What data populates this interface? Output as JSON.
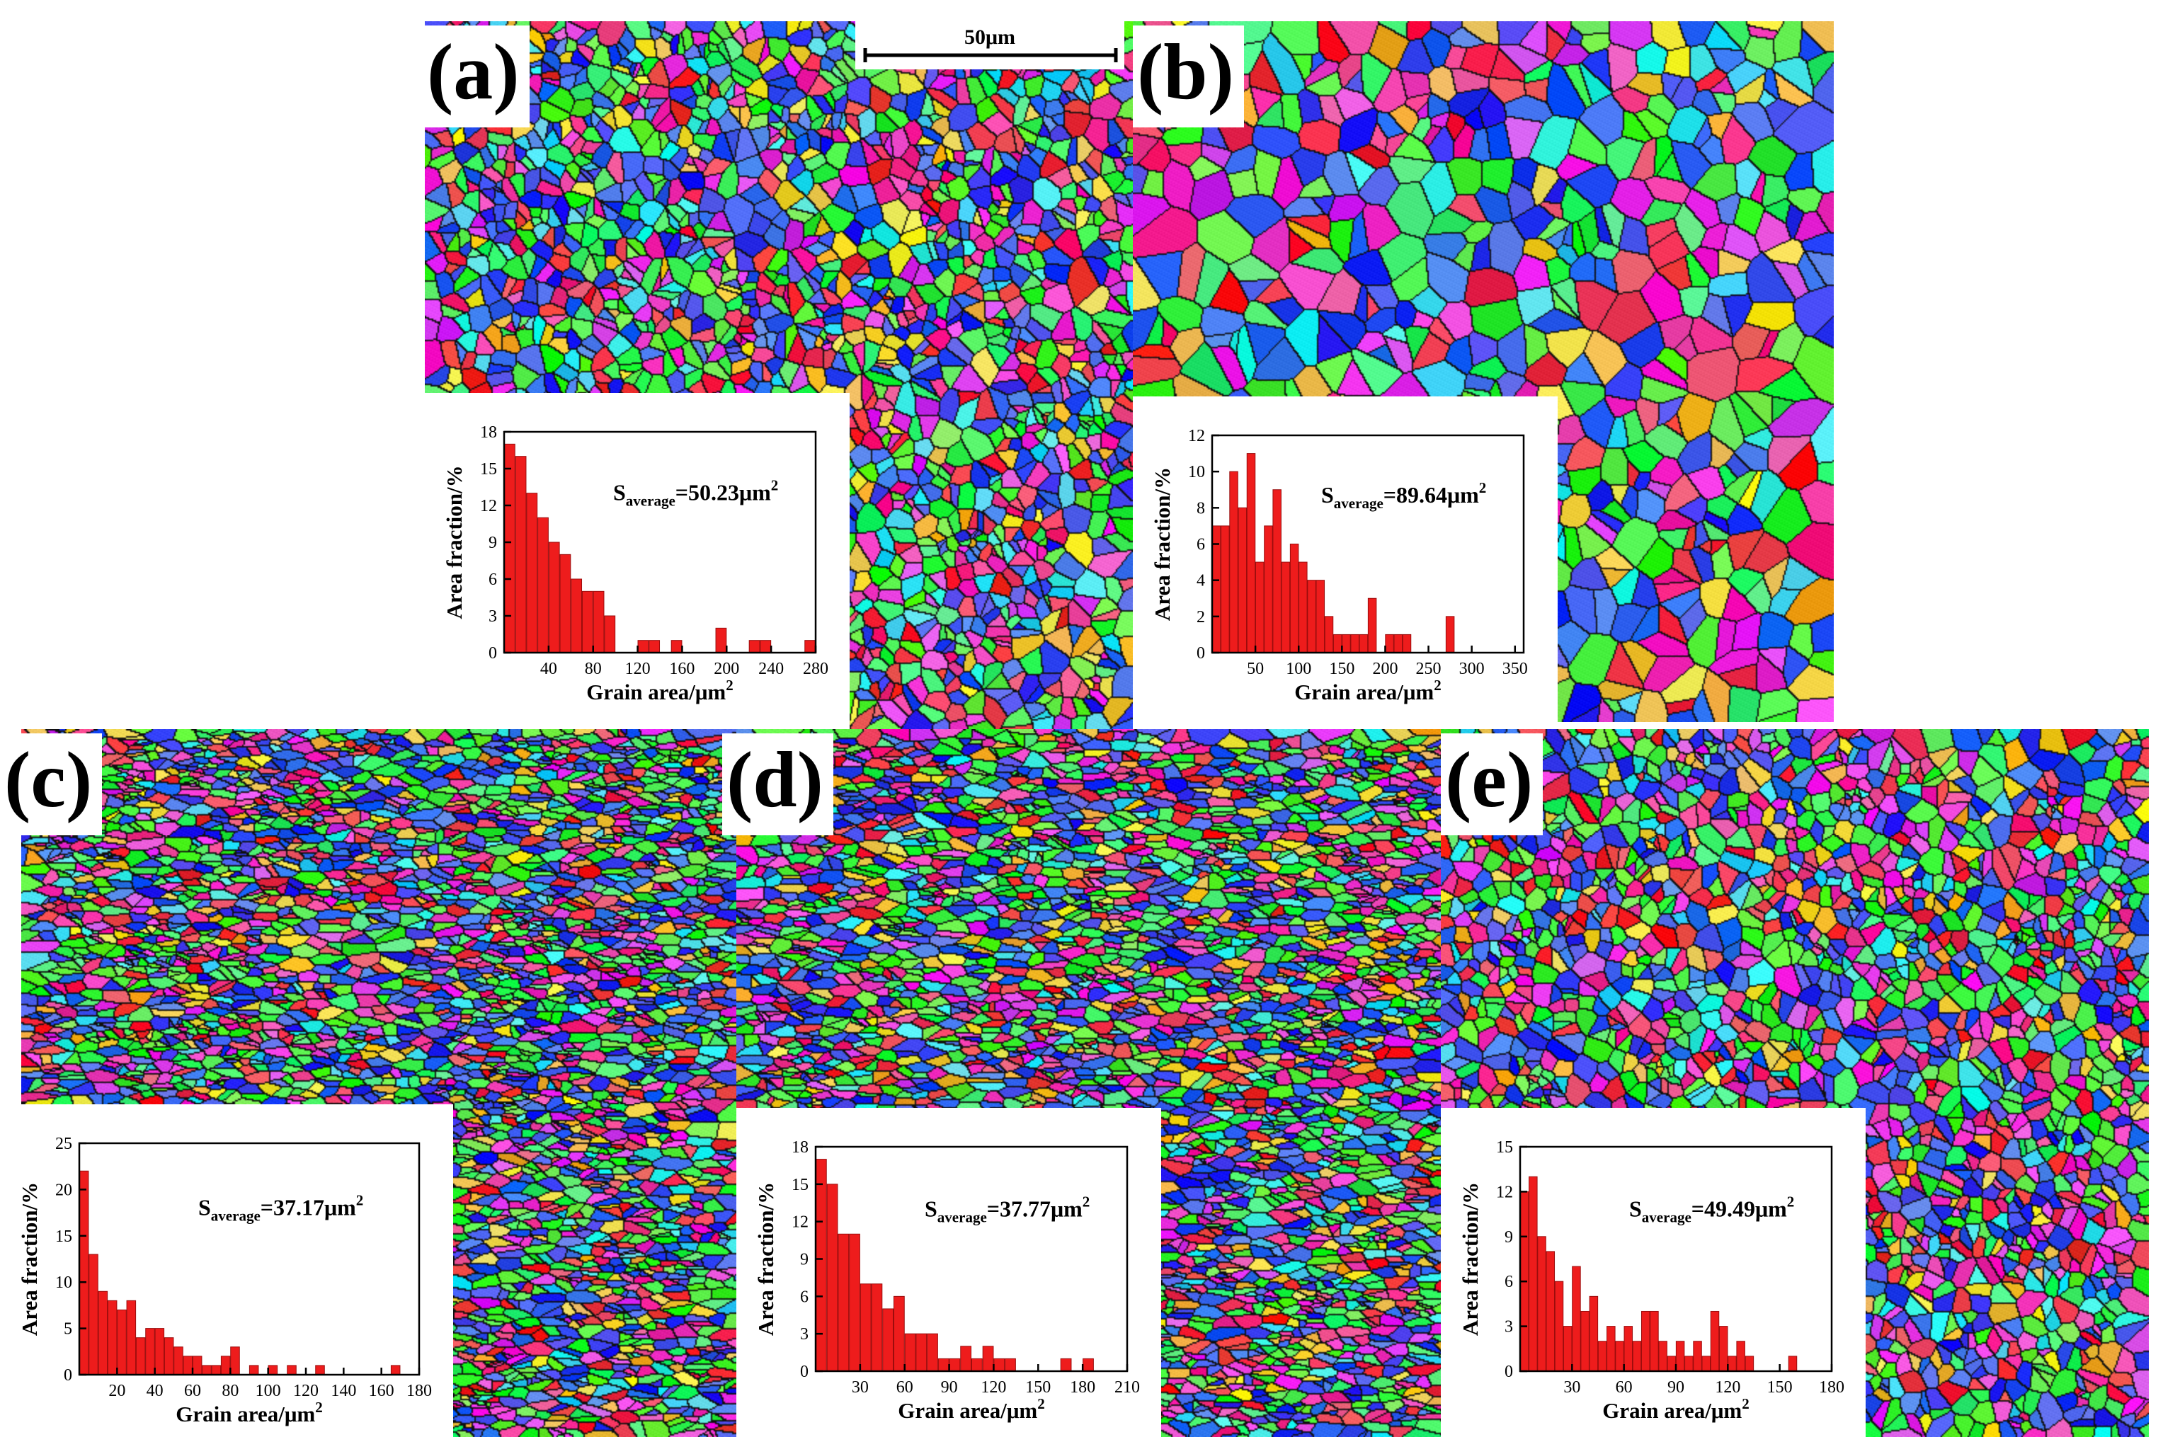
{
  "figure": {
    "scale_bar": {
      "label": "50μm"
    },
    "panels": [
      {
        "id": "a",
        "label": "(a)",
        "seed": 11,
        "grain_count": 2200,
        "chart_data": {
          "type": "bar",
          "xlabel": "Grain area/μm",
          "xlabel_sup": "2",
          "ylabel": "Area fraction/%",
          "annotation": {
            "prefix": "S",
            "subscript": "average",
            "value": "=50.23μm",
            "sup": "2"
          },
          "xlim": [
            0,
            280
          ],
          "xticks": [
            40,
            80,
            120,
            160,
            200,
            240,
            280
          ],
          "ylim": [
            0,
            18
          ],
          "yticks": [
            0,
            3,
            6,
            9,
            12,
            15,
            18
          ],
          "bin_width": 10,
          "x": [
            5,
            15,
            25,
            35,
            45,
            55,
            65,
            75,
            85,
            95,
            105,
            115,
            125,
            135,
            145,
            155,
            165,
            175,
            185,
            195,
            205,
            215,
            225,
            235,
            245,
            255,
            265,
            275
          ],
          "values": [
            17,
            16,
            13,
            11,
            9,
            8,
            6,
            5,
            5,
            3,
            0,
            0,
            1,
            1,
            0,
            1,
            0,
            0,
            0,
            2,
            0,
            0,
            1,
            1,
            0,
            0,
            0,
            1
          ]
        }
      },
      {
        "id": "b",
        "label": "(b)",
        "seed": 23,
        "grain_count": 700,
        "chart_data": {
          "type": "bar",
          "xlabel": "Grain area/μm",
          "xlabel_sup": "2",
          "ylabel": "Area fraction/%",
          "annotation": {
            "prefix": "S",
            "subscript": "average",
            "value": "=89.64μm",
            "sup": "2"
          },
          "xlim": [
            0,
            360
          ],
          "xticks": [
            50,
            100,
            150,
            200,
            250,
            300,
            350
          ],
          "ylim": [
            0,
            12
          ],
          "yticks": [
            0,
            2,
            4,
            6,
            8,
            10,
            12
          ],
          "bin_width": 10,
          "x": [
            5,
            15,
            25,
            35,
            45,
            55,
            65,
            75,
            85,
            95,
            105,
            115,
            125,
            135,
            145,
            155,
            165,
            175,
            185,
            195,
            205,
            215,
            225,
            235,
            245,
            255,
            265,
            275,
            285,
            295,
            305,
            315,
            325
          ],
          "values": [
            7,
            7,
            10,
            8,
            11,
            5,
            7,
            9,
            5,
            6,
            5,
            4,
            4,
            2,
            1,
            1,
            1,
            1,
            3,
            0,
            1,
            1,
            1,
            0,
            0,
            0,
            0,
            2,
            0,
            0,
            0,
            0,
            0
          ]
        }
      },
      {
        "id": "c",
        "label": "(c)",
        "seed": 37,
        "grain_count": 4200,
        "elongated": true,
        "chart_data": {
          "type": "bar",
          "xlabel": "Grain area/μm",
          "xlabel_sup": "2",
          "ylabel": "Area fraction/%",
          "annotation": {
            "prefix": "S",
            "subscript": "average",
            "value": "=37.17μm",
            "sup": "2"
          },
          "xlim": [
            0,
            180
          ],
          "xticks": [
            20,
            40,
            60,
            80,
            100,
            120,
            140,
            160,
            180
          ],
          "ylim": [
            0,
            25
          ],
          "yticks": [
            0,
            5,
            10,
            15,
            20,
            25
          ],
          "bin_width": 5,
          "x": [
            2.5,
            7.5,
            12.5,
            17.5,
            22.5,
            27.5,
            32.5,
            37.5,
            42.5,
            47.5,
            52.5,
            57.5,
            62.5,
            67.5,
            72.5,
            77.5,
            82.5,
            87.5,
            92.5,
            97.5,
            102.5,
            107.5,
            112.5,
            117.5,
            122.5,
            127.5,
            132.5,
            137.5,
            142.5,
            147.5,
            152.5,
            157.5,
            162.5,
            167.5,
            172.5
          ],
          "values": [
            22,
            13,
            9,
            8,
            7,
            8,
            4,
            5,
            5,
            4,
            3,
            2,
            2,
            1,
            1,
            2,
            3,
            0,
            1,
            0,
            1,
            0,
            1,
            0,
            0,
            1,
            0,
            0,
            0,
            0,
            0,
            0,
            0,
            1,
            0
          ]
        }
      },
      {
        "id": "d",
        "label": "(d)",
        "seed": 53,
        "grain_count": 3800,
        "elongated": true,
        "chart_data": {
          "type": "bar",
          "xlabel": "Grain area/μm",
          "xlabel_sup": "2",
          "ylabel": "Area fraction/%",
          "annotation": {
            "prefix": "S",
            "subscript": "average",
            "value": "=37.77μm",
            "sup": "2"
          },
          "xlim": [
            0,
            210
          ],
          "xticks": [
            30,
            60,
            90,
            120,
            150,
            180,
            210
          ],
          "ylim": [
            0,
            18
          ],
          "yticks": [
            0,
            3,
            6,
            9,
            12,
            15,
            18
          ],
          "bin_width": 7.5,
          "x": [
            3.75,
            11.25,
            18.75,
            26.25,
            33.75,
            41.25,
            48.75,
            56.25,
            63.75,
            71.25,
            78.75,
            86.25,
            93.75,
            101.25,
            108.75,
            116.25,
            123.75,
            131.25,
            138.75,
            146.25,
            153.75,
            161.25,
            168.75,
            176.25,
            183.75
          ],
          "values": [
            17,
            15,
            11,
            11,
            7,
            7,
            5,
            6,
            3,
            3,
            3,
            1,
            1,
            2,
            1,
            2,
            1,
            1,
            0,
            0,
            0,
            0,
            1,
            0,
            1
          ]
        }
      },
      {
        "id": "e",
        "label": "(e)",
        "seed": 71,
        "grain_count": 2400,
        "chart_data": {
          "type": "bar",
          "xlabel": "Grain area/μm",
          "xlabel_sup": "2",
          "ylabel": "Area fraction/%",
          "annotation": {
            "prefix": "S",
            "subscript": "average",
            "value": "=49.49μm",
            "sup": "2"
          },
          "xlim": [
            0,
            180
          ],
          "xticks": [
            30,
            60,
            90,
            120,
            150,
            180
          ],
          "ylim": [
            0,
            15
          ],
          "yticks": [
            0,
            3,
            6,
            9,
            12,
            15
          ],
          "bin_width": 5,
          "x": [
            2.5,
            7.5,
            12.5,
            17.5,
            22.5,
            27.5,
            32.5,
            37.5,
            42.5,
            47.5,
            52.5,
            57.5,
            62.5,
            67.5,
            72.5,
            77.5,
            82.5,
            87.5,
            92.5,
            97.5,
            102.5,
            107.5,
            112.5,
            117.5,
            122.5,
            127.5,
            132.5,
            137.5,
            142.5,
            147.5,
            152.5,
            157.5,
            162.5,
            167.5
          ],
          "values": [
            12,
            13,
            9,
            8,
            6,
            3,
            7,
            4,
            5,
            2,
            3,
            2,
            3,
            2,
            4,
            4,
            2,
            1,
            2,
            1,
            2,
            1,
            4,
            3,
            1,
            2,
            1,
            0,
            0,
            0,
            0,
            1,
            0,
            0
          ]
        }
      }
    ]
  }
}
